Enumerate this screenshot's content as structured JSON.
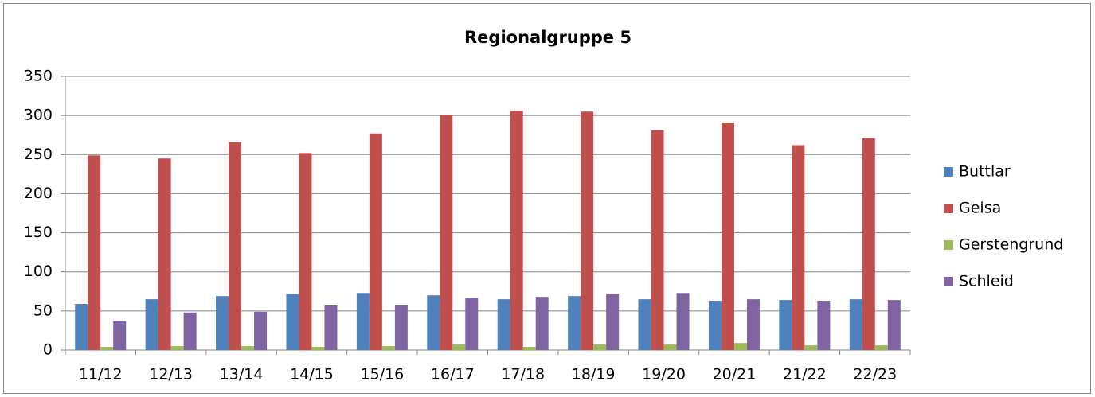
{
  "chart_data": {
    "type": "bar",
    "title": "Regionalgruppe 5",
    "categories": [
      "11/12",
      "12/13",
      "13/14",
      "14/15",
      "15/16",
      "16/17",
      "17/18",
      "18/19",
      "19/20",
      "20/21",
      "21/22",
      "22/23"
    ],
    "series": [
      {
        "name": "Buttlar",
        "color": "#4f81bd",
        "values": [
          59,
          65,
          69,
          72,
          73,
          70,
          65,
          69,
          65,
          63,
          64,
          65
        ]
      },
      {
        "name": "Geisa",
        "color": "#c0504d",
        "values": [
          249,
          245,
          266,
          252,
          277,
          301,
          306,
          305,
          281,
          291,
          262,
          271
        ]
      },
      {
        "name": "Gerstengrund",
        "color": "#9bbb59",
        "values": [
          4,
          5,
          5,
          4,
          5,
          7,
          4,
          7,
          7,
          9,
          6,
          6
        ]
      },
      {
        "name": "Schleid",
        "color": "#8064a2",
        "values": [
          37,
          48,
          49,
          58,
          58,
          67,
          68,
          72,
          73,
          65,
          63,
          64
        ]
      }
    ],
    "ylim": [
      0,
      350
    ],
    "yticks": [
      0,
      50,
      100,
      150,
      200,
      250,
      300,
      350
    ],
    "grid": true,
    "legend": "right"
  }
}
